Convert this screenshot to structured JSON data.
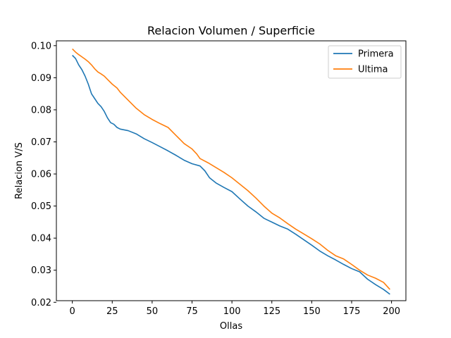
{
  "chart_data": {
    "type": "line",
    "title": "Relacion Volumen / Superficie",
    "xlabel": "Ollas",
    "ylabel": "Relacion V/S",
    "xlim": [
      -10,
      209
    ],
    "ylim": [
      0.0205,
      0.1015
    ],
    "xticks": [
      0,
      25,
      50,
      75,
      100,
      125,
      150,
      175,
      200
    ],
    "yticks": [
      0.02,
      0.03,
      0.04,
      0.05,
      0.06,
      0.07,
      0.08,
      0.09,
      0.1
    ],
    "ytick_labels": [
      "0.02",
      "0.03",
      "0.04",
      "0.05",
      "0.06",
      "0.07",
      "0.08",
      "0.09",
      "0.10"
    ],
    "grid": false,
    "legend": "top-right",
    "series": [
      {
        "name": "Primera",
        "color": "#1f77b4",
        "x": [
          0,
          2,
          4,
          6,
          8,
          10,
          12,
          14,
          16,
          18,
          20,
          22,
          24,
          26,
          28,
          30,
          35,
          40,
          45,
          50,
          55,
          60,
          65,
          70,
          75,
          80,
          83,
          86,
          90,
          95,
          100,
          105,
          110,
          115,
          120,
          125,
          130,
          135,
          140,
          145,
          150,
          155,
          160,
          165,
          170,
          175,
          180,
          185,
          190,
          195,
          199
        ],
        "y": [
          0.097,
          0.096,
          0.094,
          0.0925,
          0.0905,
          0.088,
          0.085,
          0.0835,
          0.082,
          0.081,
          0.0795,
          0.0775,
          0.076,
          0.0755,
          0.0745,
          0.074,
          0.0735,
          0.0725,
          0.071,
          0.0698,
          0.0685,
          0.0672,
          0.0658,
          0.0643,
          0.0632,
          0.0625,
          0.061,
          0.0588,
          0.0572,
          0.0558,
          0.0545,
          0.0522,
          0.05,
          0.0482,
          0.0462,
          0.045,
          0.0438,
          0.0428,
          0.0412,
          0.0395,
          0.0378,
          0.036,
          0.0345,
          0.0332,
          0.0318,
          0.0305,
          0.0295,
          0.0272,
          0.0255,
          0.024,
          0.0225
        ]
      },
      {
        "name": "Ultima",
        "color": "#ff7f0e",
        "x": [
          0,
          2,
          4,
          6,
          8,
          10,
          12,
          14,
          16,
          18,
          20,
          22,
          25,
          28,
          30,
          35,
          40,
          45,
          50,
          55,
          60,
          65,
          70,
          75,
          78,
          80,
          85,
          90,
          95,
          100,
          105,
          110,
          115,
          120,
          125,
          130,
          135,
          140,
          145,
          150,
          155,
          160,
          165,
          170,
          175,
          180,
          185,
          190,
          195,
          199
        ],
        "y": [
          0.099,
          0.098,
          0.0972,
          0.0965,
          0.0958,
          0.095,
          0.094,
          0.0928,
          0.0918,
          0.0912,
          0.0905,
          0.0895,
          0.088,
          0.0868,
          0.0855,
          0.083,
          0.0805,
          0.0785,
          0.077,
          0.0757,
          0.0745,
          0.072,
          0.0695,
          0.0678,
          0.0662,
          0.0648,
          0.0635,
          0.062,
          0.0605,
          0.0588,
          0.0568,
          0.0548,
          0.0525,
          0.05,
          0.0478,
          0.0463,
          0.0445,
          0.0428,
          0.0413,
          0.0398,
          0.0382,
          0.0362,
          0.0345,
          0.0335,
          0.0318,
          0.03,
          0.0285,
          0.0275,
          0.0262,
          0.024
        ]
      }
    ]
  }
}
